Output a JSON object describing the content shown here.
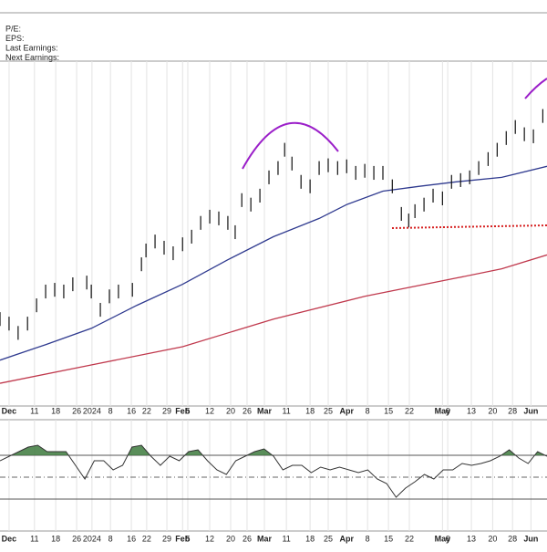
{
  "chart_data": {
    "type": "ohlc",
    "info_labels": [
      "P/E:",
      "EPS:",
      "Last Earnings:",
      "Next Earnings:"
    ],
    "xlim": [
      0,
      157
    ],
    "xticks": [
      {
        "value": 2.6,
        "label": "Dec"
      },
      {
        "value": 9.9,
        "label": "11"
      },
      {
        "value": 16,
        "label": "18"
      },
      {
        "value": 22,
        "label": "26"
      },
      {
        "value": 26.4,
        "label": "2024"
      },
      {
        "value": 31.7,
        "label": "8"
      },
      {
        "value": 37.7,
        "label": "16"
      },
      {
        "value": 42.1,
        "label": "22"
      },
      {
        "value": 47.9,
        "label": "29"
      },
      {
        "value": 52.4,
        "label": "Feb"
      },
      {
        "value": 53.9,
        "label": "5"
      },
      {
        "value": 60.2,
        "label": "12"
      },
      {
        "value": 66.2,
        "label": "20"
      },
      {
        "value": 70.9,
        "label": "26"
      },
      {
        "value": 75.9,
        "label": "Mar"
      },
      {
        "value": 82.2,
        "label": "11"
      },
      {
        "value": 89,
        "label": "18"
      },
      {
        "value": 94.2,
        "label": "25"
      },
      {
        "value": 99.5,
        "label": "Apr"
      },
      {
        "value": 105.5,
        "label": "8"
      },
      {
        "value": 111.5,
        "label": "15"
      },
      {
        "value": 117.5,
        "label": "22"
      },
      {
        "value": 127,
        "label": "May"
      },
      {
        "value": 128.5,
        "label": "6"
      },
      {
        "value": 135.3,
        "label": "13"
      },
      {
        "value": 141.4,
        "label": "20"
      },
      {
        "value": 147.1,
        "label": "28"
      },
      {
        "value": 152.4,
        "label": "Jun"
      }
    ],
    "ylim": [
      0,
      100
    ],
    "price": {
      "color": "#111111",
      "x": [
        0,
        2.6,
        5.2,
        7.9,
        10.5,
        13.1,
        15.7,
        18.3,
        20.9,
        24.9,
        26.2,
        28.8,
        31.4,
        34.0,
        38.0,
        40.6,
        41.9,
        44.5,
        47.1,
        49.7,
        52.4,
        55.0,
        57.6,
        60.2,
        62.8,
        65.4,
        67.5,
        69.4,
        72.0,
        74.6,
        77.2,
        79.8,
        81.7,
        83.8,
        86.4,
        89.0,
        91.6,
        94.2,
        96.9,
        99.5,
        102.1,
        104.7,
        107.3,
        109.9,
        112.6,
        115.2,
        117.3,
        119.1,
        121.7,
        124.3,
        127.0,
        129.6,
        132.2,
        134.8,
        137.4,
        140.1,
        142.7,
        145.3,
        147.9,
        150.5,
        153.1,
        155.8
      ],
      "high": [
        27.2,
        25.9,
        23.2,
        25.9,
        31.2,
        35.2,
        35.7,
        35.2,
        37.3,
        37.8,
        35.2,
        29.9,
        33.8,
        35.2,
        35.7,
        43.1,
        47.1,
        49.7,
        47.9,
        46.3,
        48.9,
        51.1,
        55.1,
        56.9,
        56.4,
        55.1,
        52.4,
        61.7,
        60.4,
        63,
        68.3,
        71,
        76.3,
        72.3,
        67,
        65.7,
        71,
        71.8,
        71,
        71.5,
        69.6,
        70.2,
        69.6,
        69.6,
        65.7,
        57.7,
        55.8,
        58.5,
        60.4,
        63,
        62.2,
        67,
        67.5,
        68.3,
        71,
        73.6,
        76.3,
        79.7,
        82.9,
        80.8,
        80.2,
        86.1
      ],
      "low": [
        23.2,
        21.9,
        19.2,
        21.9,
        27.2,
        31.2,
        31.7,
        31.2,
        33.3,
        33.8,
        31.2,
        25.9,
        29.8,
        31.2,
        31.7,
        39.1,
        43.1,
        45.7,
        43.9,
        42.3,
        44.9,
        47.1,
        51.1,
        52.9,
        52.4,
        51.1,
        48.4,
        57.7,
        56.4,
        59,
        64.3,
        67,
        72.3,
        68.3,
        63,
        61.7,
        67,
        67.8,
        67,
        67.5,
        65.6,
        66.2,
        65.6,
        65.6,
        61.7,
        53.7,
        51.8,
        54.5,
        56.4,
        59,
        58.2,
        63,
        63.5,
        64.3,
        67,
        69.6,
        72.3,
        75.7,
        78.9,
        76.8,
        76.2,
        82.1
      ]
    },
    "series": [
      {
        "color": "#2f3a8f",
        "x": [
          0,
          13.1,
          26.2,
          39.3,
          52.4,
          65.4,
          78.5,
          91.6,
          99.5,
          109.9,
          120.4,
          130.9,
          144.0,
          157
        ],
        "values": [
          13.3,
          17.8,
          22.5,
          29.2,
          35.3,
          42.4,
          49.1,
          54.4,
          58.4,
          62.3,
          63.7,
          65.0,
          66.3,
          69.5
        ]
      },
      {
        "color": "#c0394d",
        "x": [
          0,
          26.2,
          52.4,
          78.5,
          104.7,
          130.9,
          144,
          157
        ],
        "values": [
          6.6,
          11.9,
          17.2,
          25.2,
          31.8,
          37.1,
          39.8,
          43.8
        ]
      }
    ],
    "indicator": {
      "color": "#333333",
      "fill": "#3d7a3d",
      "ylim": [
        0,
        100
      ],
      "levels": [
        30,
        50,
        70
      ],
      "values": [
        65,
        69.2,
        73.3,
        77.5,
        79.2,
        73.3,
        73.3,
        73.3,
        60.8,
        48.3,
        65,
        65,
        56.7,
        60.8,
        77.5,
        79.2,
        69.2,
        60.8,
        69.2,
        65,
        73.3,
        75,
        65,
        56.7,
        52.5,
        65,
        69.2,
        73.3,
        75.8,
        69.2,
        56.7,
        60.8,
        60.8,
        54.2,
        59.2,
        56.7,
        59.2,
        56.7,
        54.2,
        56.7,
        48.3,
        44.2,
        31.7,
        40,
        45.8,
        52.5,
        48.3,
        56.7,
        56.7,
        62.5,
        60.8,
        62.5,
        65,
        69.2,
        75,
        67.5,
        62.5,
        73.3,
        69.2
      ]
    }
  }
}
